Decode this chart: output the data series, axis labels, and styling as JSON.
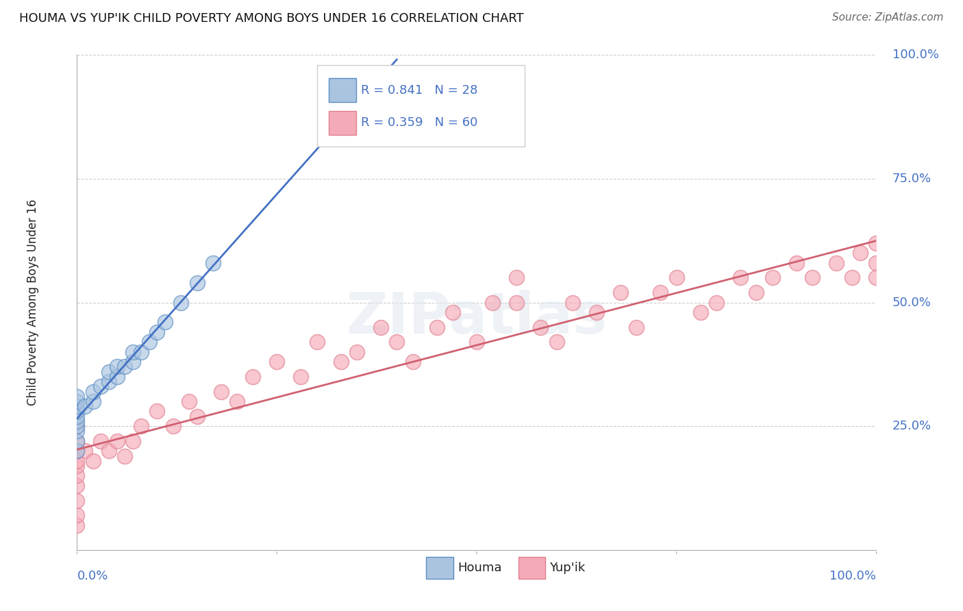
{
  "title": "HOUMA VS YUP'IK CHILD POVERTY AMONG BOYS UNDER 16 CORRELATION CHART",
  "source": "Source: ZipAtlas.com",
  "ylabel": "Child Poverty Among Boys Under 16",
  "ytick_labels": [
    "100.0%",
    "75.0%",
    "50.0%",
    "25.0%"
  ],
  "ytick_positions": [
    1.0,
    0.75,
    0.5,
    0.25
  ],
  "xtick_label_left": "0.0%",
  "xtick_label_right": "100.0%",
  "houma_R": 0.841,
  "houma_N": 28,
  "yupik_R": 0.359,
  "yupik_N": 60,
  "houma_color": "#aac4e0",
  "yupik_color": "#f5aab8",
  "houma_edge_color": "#5b8ec4",
  "yupik_edge_color": "#e08090",
  "houma_line_color": "#4472c4",
  "yupik_line_color": "#d06070",
  "label_color": "#4472c4",
  "text_color": "#222222",
  "grid_color": "#cccccc",
  "background_color": "#ffffff",
  "watermark": "ZIPatlas",
  "houma_x": [
    0.0,
    0.0,
    0.0,
    0.0,
    0.0,
    0.0,
    0.0,
    0.0,
    0.0,
    0.0,
    0.01,
    0.02,
    0.02,
    0.03,
    0.04,
    0.04,
    0.05,
    0.05,
    0.06,
    0.07,
    0.07,
    0.08,
    0.09,
    0.1,
    0.11,
    0.13,
    0.15,
    0.17
  ],
  "houma_y": [
    0.2,
    0.22,
    0.24,
    0.25,
    0.26,
    0.27,
    0.28,
    0.29,
    0.3,
    0.31,
    0.29,
    0.3,
    0.32,
    0.33,
    0.34,
    0.36,
    0.35,
    0.37,
    0.37,
    0.38,
    0.4,
    0.4,
    0.42,
    0.44,
    0.46,
    0.5,
    0.54,
    0.58
  ],
  "yupik_x": [
    0.0,
    0.0,
    0.0,
    0.0,
    0.0,
    0.0,
    0.0,
    0.0,
    0.0,
    0.0,
    0.01,
    0.02,
    0.03,
    0.04,
    0.05,
    0.06,
    0.07,
    0.08,
    0.1,
    0.12,
    0.14,
    0.15,
    0.18,
    0.2,
    0.22,
    0.25,
    0.28,
    0.3,
    0.33,
    0.35,
    0.38,
    0.4,
    0.42,
    0.45,
    0.47,
    0.5,
    0.52,
    0.55,
    0.58,
    0.6,
    0.62,
    0.65,
    0.68,
    0.7,
    0.73,
    0.75,
    0.78,
    0.8,
    0.83,
    0.85,
    0.87,
    0.9,
    0.92,
    0.95,
    0.97,
    0.98,
    1.0,
    1.0,
    1.0,
    0.55
  ],
  "yupik_y": [
    0.05,
    0.07,
    0.1,
    0.13,
    0.15,
    0.17,
    0.18,
    0.2,
    0.22,
    0.25,
    0.2,
    0.18,
    0.22,
    0.2,
    0.22,
    0.19,
    0.22,
    0.25,
    0.28,
    0.25,
    0.3,
    0.27,
    0.32,
    0.3,
    0.35,
    0.38,
    0.35,
    0.42,
    0.38,
    0.4,
    0.45,
    0.42,
    0.38,
    0.45,
    0.48,
    0.42,
    0.5,
    0.55,
    0.45,
    0.42,
    0.5,
    0.48,
    0.52,
    0.45,
    0.52,
    0.55,
    0.48,
    0.5,
    0.55,
    0.52,
    0.55,
    0.58,
    0.55,
    0.58,
    0.55,
    0.6,
    0.58,
    0.55,
    0.62,
    0.5
  ]
}
